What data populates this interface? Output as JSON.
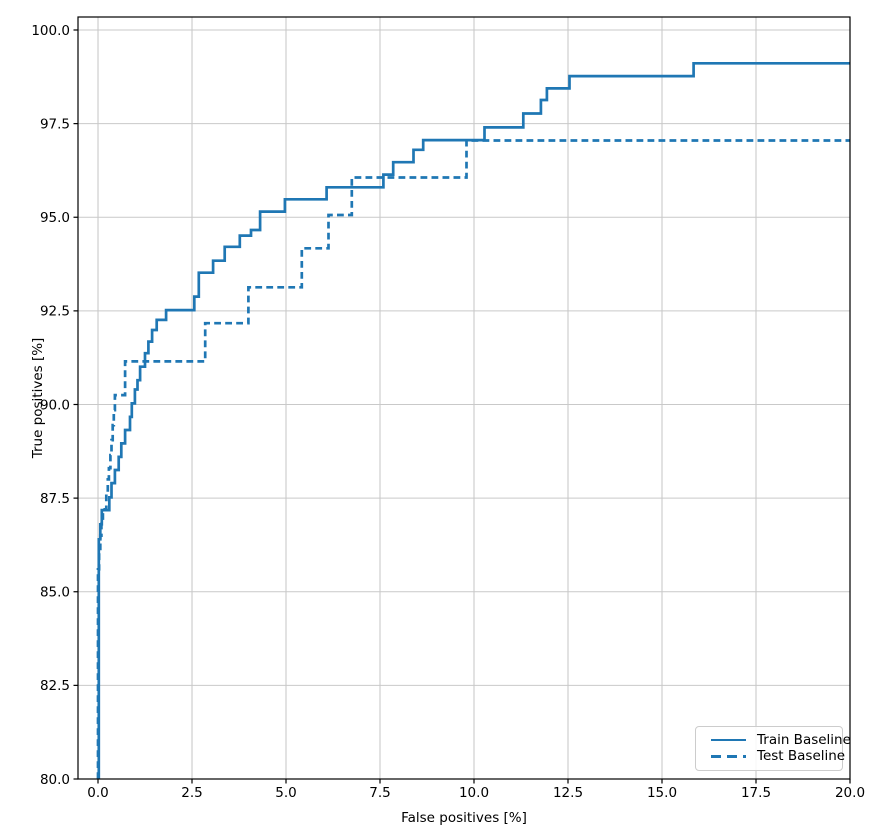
{
  "chart_data": {
    "type": "line",
    "subtype": "step-post",
    "title": "",
    "xlabel": "False positives [%]",
    "ylabel": "True positives [%]",
    "xlim": [
      -0.532,
      20.0
    ],
    "ylim": [
      80.0,
      100.347
    ],
    "x_ticks": [
      0.0,
      2.5,
      5.0,
      7.5,
      10.0,
      12.5,
      15.0,
      17.5,
      20.0
    ],
    "y_ticks": [
      80.0,
      82.5,
      85.0,
      87.5,
      90.0,
      92.5,
      95.0,
      97.5,
      100.0
    ],
    "grid": true,
    "grid_color": "#c9c9c9",
    "legend_position": "lower right",
    "line_color": "#1f77b4",
    "axis_color": "#000000",
    "series": [
      {
        "name": "Train Baseline",
        "style": "solid",
        "y_start": 80.0,
        "x_end": 20.0,
        "step_points": [
          [
            0.02,
            86.4
          ],
          [
            0.06,
            86.8
          ],
          [
            0.1,
            87.18
          ],
          [
            0.3,
            87.52
          ],
          [
            0.36,
            87.9
          ],
          [
            0.45,
            88.25
          ],
          [
            0.55,
            88.6
          ],
          [
            0.62,
            88.96
          ],
          [
            0.72,
            89.32
          ],
          [
            0.85,
            89.67
          ],
          [
            0.9,
            90.03
          ],
          [
            0.98,
            90.4
          ],
          [
            1.05,
            90.65
          ],
          [
            1.12,
            91.01
          ],
          [
            1.25,
            91.37
          ],
          [
            1.34,
            91.68
          ],
          [
            1.44,
            91.99
          ],
          [
            1.56,
            92.26
          ],
          [
            1.81,
            92.52
          ],
          [
            2.56,
            92.88
          ],
          [
            2.68,
            93.52
          ],
          [
            3.06,
            93.84
          ],
          [
            3.37,
            94.21
          ],
          [
            3.77,
            94.51
          ],
          [
            4.07,
            94.66
          ],
          [
            4.31,
            95.15
          ],
          [
            4.97,
            95.48
          ],
          [
            6.08,
            95.8
          ],
          [
            7.59,
            96.14
          ],
          [
            7.85,
            96.47
          ],
          [
            8.39,
            96.8
          ],
          [
            8.65,
            97.06
          ],
          [
            10.28,
            97.4
          ],
          [
            11.31,
            97.77
          ],
          [
            11.78,
            98.13
          ],
          [
            11.94,
            98.44
          ],
          [
            12.54,
            98.77
          ],
          [
            15.84,
            99.11
          ]
        ]
      },
      {
        "name": "Test Baseline",
        "style": "dashed",
        "y_start": 80.0,
        "x_end": 20.0,
        "step_points": [
          [
            0.0,
            85.6
          ],
          [
            0.03,
            86.1
          ],
          [
            0.06,
            86.5
          ],
          [
            0.09,
            86.9
          ],
          [
            0.13,
            87.2
          ],
          [
            0.22,
            87.6
          ],
          [
            0.26,
            88.0
          ],
          [
            0.29,
            88.3
          ],
          [
            0.33,
            88.65
          ],
          [
            0.36,
            89.05
          ],
          [
            0.39,
            89.45
          ],
          [
            0.42,
            89.85
          ],
          [
            0.45,
            90.25
          ],
          [
            0.72,
            91.15
          ],
          [
            2.85,
            92.17
          ],
          [
            4.0,
            93.13
          ],
          [
            5.42,
            94.17
          ],
          [
            6.13,
            95.06
          ],
          [
            6.75,
            96.06
          ],
          [
            9.8,
            97.05
          ]
        ]
      }
    ]
  },
  "legend": {
    "items": [
      {
        "label": "Train Baseline"
      },
      {
        "label": "Test Baseline"
      }
    ]
  }
}
